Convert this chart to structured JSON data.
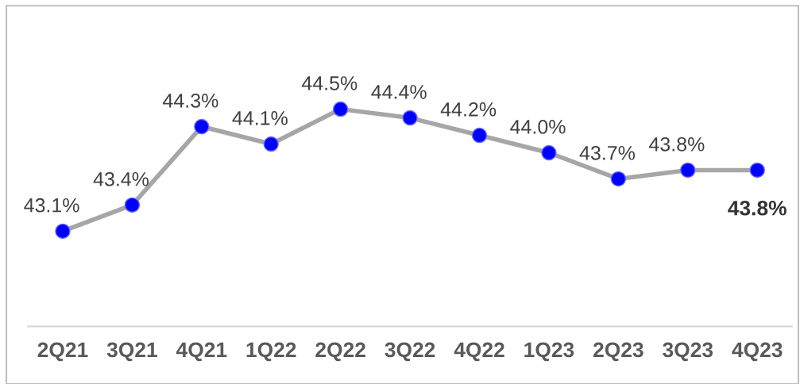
{
  "chart_data": {
    "type": "line",
    "categories": [
      "2Q21",
      "3Q21",
      "4Q21",
      "1Q22",
      "2Q22",
      "3Q22",
      "4Q22",
      "1Q23",
      "2Q23",
      "3Q23",
      "4Q23"
    ],
    "series": [
      {
        "color": "#a6a6a6",
        "values": [
          43.1,
          43.4,
          44.3,
          44.1,
          44.5,
          44.4,
          44.2,
          44.0,
          43.7,
          43.8,
          43.8
        ],
        "value_labels": [
          "43.1%",
          "43.4%",
          "44.3%",
          "44.1%",
          "44.5%",
          "44.4%",
          "44.2%",
          "44.0%",
          "43.7%",
          "43.8%",
          "43.8%"
        ]
      }
    ],
    "marker": "circle",
    "line_style": "solid",
    "grid": false
  }
}
